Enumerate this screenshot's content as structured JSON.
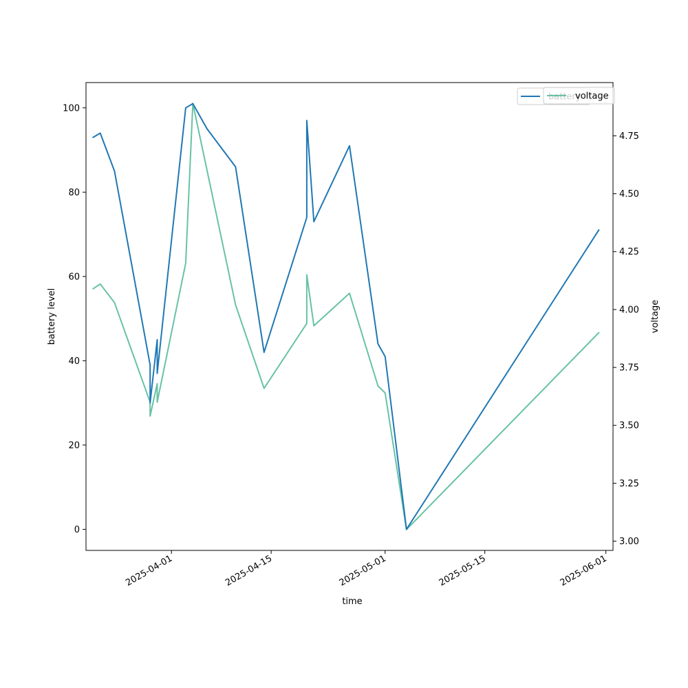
{
  "chart_data": {
    "type": "line",
    "xlabel": "time",
    "ylabel_left": "battery level",
    "ylabel_right": "voltage",
    "x_ticks": [
      "2025-04-01",
      "2025-04-15",
      "2025-05-01",
      "2025-05-15",
      "2025-06-01"
    ],
    "y_left_ticks": [
      "0",
      "20",
      "40",
      "60",
      "80",
      "100"
    ],
    "y_right_ticks": [
      "3.00",
      "3.25",
      "3.50",
      "3.75",
      "4.00",
      "4.25",
      "4.50",
      "4.75"
    ],
    "xlim": [
      "2025-03-20",
      "2025-06-02"
    ],
    "ylim_left": [
      -5,
      106
    ],
    "ylim_right": [
      2.96,
      4.98
    ],
    "legends": [
      {
        "position": "top-right",
        "entries": [
          "battery"
        ]
      },
      {
        "position": "top-right",
        "entries": [
          "voltage"
        ]
      }
    ],
    "series": [
      {
        "name": "battery",
        "axis": "left",
        "color": "#1f77b4",
        "x": [
          "2025-03-21",
          "2025-03-22",
          "2025-03-24",
          "2025-03-29",
          "2025-03-29",
          "2025-03-30",
          "2025-03-30",
          "2025-04-03",
          "2025-04-04",
          "2025-04-06",
          "2025-04-10",
          "2025-04-14",
          "2025-04-20",
          "2025-04-20",
          "2025-04-21",
          "2025-04-21",
          "2025-04-26",
          "2025-04-30",
          "2025-05-01",
          "2025-05-04",
          "2025-05-31"
        ],
        "y": [
          93,
          94,
          85,
          39,
          30,
          45,
          37,
          100,
          101,
          95,
          86,
          42,
          74,
          97,
          73,
          73,
          91,
          44,
          41,
          0,
          71
        ]
      },
      {
        "name": "voltage",
        "axis": "right",
        "color": "#66c2a5",
        "x": [
          "2025-03-21",
          "2025-03-22",
          "2025-03-24",
          "2025-03-29",
          "2025-03-29",
          "2025-03-30",
          "2025-03-30",
          "2025-04-03",
          "2025-04-04",
          "2025-04-10",
          "2025-04-14",
          "2025-04-20",
          "2025-04-20",
          "2025-04-21",
          "2025-04-21",
          "2025-04-26",
          "2025-04-30",
          "2025-05-01",
          "2025-05-04",
          "2025-05-31"
        ],
        "y": [
          4.09,
          4.11,
          4.03,
          3.6,
          3.54,
          3.68,
          3.6,
          4.2,
          4.89,
          4.02,
          3.66,
          3.94,
          4.15,
          3.93,
          3.93,
          4.07,
          3.67,
          3.64,
          3.05,
          3.9
        ]
      }
    ]
  }
}
